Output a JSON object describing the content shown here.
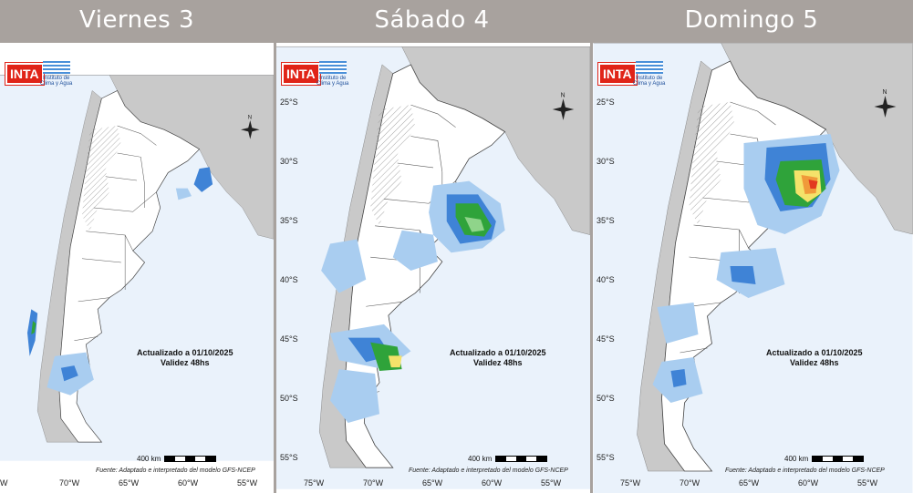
{
  "days": [
    {
      "title": "Viernes 3"
    },
    {
      "title": "Sábado 4"
    },
    {
      "title": "Domingo 5"
    }
  ],
  "map": {
    "logo_inta": "INTA",
    "logo_ica": [
      "Instituto de",
      "Clima y Agua"
    ],
    "updated": "Actualizado a 01/10/2025",
    "validity": "Validez 48hs",
    "source": "Fuente: Adaptado e interpretado del modelo GFS-NCEP",
    "scale": "400 km",
    "north": "N",
    "lat_labels": [
      "25°S",
      "30°S",
      "35°S",
      "40°S",
      "45°S",
      "50°S",
      "55°S"
    ],
    "lon_labels": [
      "75°W",
      "70°W",
      "65°W",
      "60°W",
      "55°W"
    ]
  },
  "colors": {
    "ocean": "#eaf2fb",
    "land_neighbors": "#c9c9c9",
    "argentina": "#ffffff",
    "precip_light": "#a9cdf0",
    "precip_mid": "#3f83d6",
    "precip_green_light": "#8fd48a",
    "precip_green": "#2fa33a",
    "precip_yellow": "#f4e26a",
    "precip_orange": "#f09a3a",
    "precip_red": "#e23a1f"
  }
}
